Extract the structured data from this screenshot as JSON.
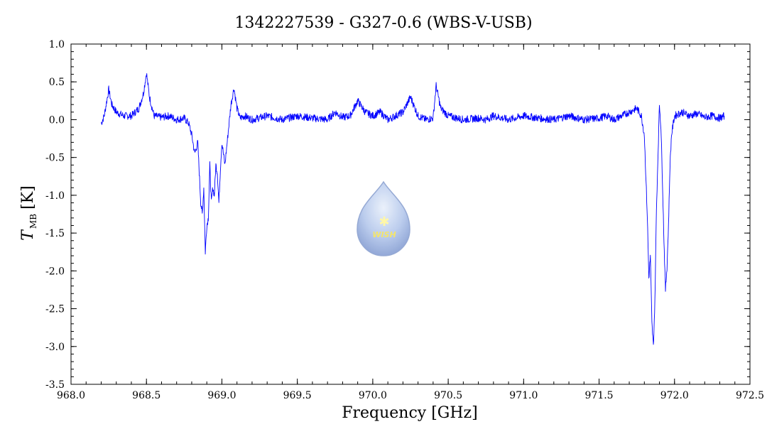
{
  "chart_data": {
    "type": "line",
    "title": "1342227539 - G327-0.6 (WBS-V-USB)",
    "xlabel": "Frequency [GHz]",
    "ylabel_main": "T",
    "ylabel_sub": "MB",
    "ylabel_unit": "[K]",
    "xlim": [
      968.0,
      972.5
    ],
    "ylim": [
      -3.5,
      1.0
    ],
    "xticks": [
      "968.0",
      "968.5",
      "969.0",
      "969.5",
      "970.0",
      "970.5",
      "971.0",
      "971.5",
      "972.0",
      "972.5"
    ],
    "yticks": [
      "1.0",
      "0.5",
      "0.0",
      "-0.5",
      "-1.0",
      "-1.5",
      "-2.0",
      "-2.5",
      "-3.0",
      "-3.5"
    ],
    "grid": false,
    "logo_text": "WISH",
    "colors": {
      "line": "#0000ff",
      "axes": "#000000",
      "logo": "#9fb7e6"
    },
    "series": [
      {
        "x": [
          968.2,
          968.22,
          968.25,
          968.27,
          968.3,
          968.35,
          968.4,
          968.45,
          968.48,
          968.5,
          968.52,
          968.55,
          968.6,
          968.65,
          968.7,
          968.75,
          968.78,
          968.8,
          968.82,
          968.84,
          968.85,
          968.86,
          968.87,
          968.88,
          968.89,
          968.9,
          968.91,
          968.92,
          968.93,
          968.94,
          968.95,
          968.96,
          968.97,
          968.98,
          968.99,
          969.0,
          969.02,
          969.04,
          969.06,
          969.08,
          969.1,
          969.12,
          969.15,
          969.2,
          969.3,
          969.4,
          969.5,
          969.6,
          969.7,
          969.75,
          969.8,
          969.85,
          969.9,
          969.95,
          970.0,
          970.05,
          970.1,
          970.15,
          970.2,
          970.25,
          970.3,
          970.35,
          970.4,
          970.42,
          970.45,
          970.5,
          970.6,
          970.7,
          970.75,
          970.8,
          970.9,
          971.0,
          971.1,
          971.2,
          971.3,
          971.4,
          971.5,
          971.55,
          971.6,
          971.65,
          971.7,
          971.75,
          971.78,
          971.8,
          971.82,
          971.83,
          971.84,
          971.85,
          971.86,
          971.87,
          971.88,
          971.9,
          971.91,
          971.92,
          971.93,
          971.94,
          971.95,
          971.96,
          971.97,
          971.98,
          972.0,
          972.05,
          972.1,
          972.15,
          972.2,
          972.25,
          972.3,
          972.33
        ],
        "y": [
          -0.05,
          0.05,
          0.4,
          0.2,
          0.1,
          0.05,
          0.05,
          0.15,
          0.35,
          0.62,
          0.3,
          0.05,
          0.03,
          0.05,
          0.0,
          0.02,
          -0.05,
          -0.2,
          -0.45,
          -0.3,
          -0.7,
          -1.1,
          -1.25,
          -0.9,
          -1.75,
          -1.4,
          -1.3,
          -0.6,
          -1.1,
          -0.9,
          -1.0,
          -0.6,
          -0.7,
          -1.1,
          -0.65,
          -0.3,
          -0.6,
          -0.2,
          0.2,
          0.42,
          0.15,
          0.02,
          0.05,
          0.0,
          0.05,
          0.0,
          0.05,
          0.02,
          0.0,
          0.1,
          0.03,
          0.05,
          0.25,
          0.1,
          0.05,
          0.1,
          0.0,
          0.05,
          0.1,
          0.3,
          0.05,
          0.0,
          0.02,
          0.45,
          0.15,
          0.05,
          0.0,
          0.02,
          0.0,
          0.05,
          0.0,
          0.05,
          0.02,
          0.0,
          0.05,
          0.0,
          0.02,
          0.05,
          0.0,
          0.05,
          0.1,
          0.15,
          0.05,
          -0.2,
          -1.3,
          -2.1,
          -1.8,
          -2.7,
          -3.0,
          -2.4,
          -1.2,
          0.2,
          -0.1,
          -0.8,
          -1.6,
          -2.25,
          -1.95,
          -1.4,
          -0.6,
          -0.2,
          0.05,
          0.1,
          0.05,
          0.08,
          0.03,
          0.05,
          0.02,
          0.05
        ]
      }
    ]
  }
}
